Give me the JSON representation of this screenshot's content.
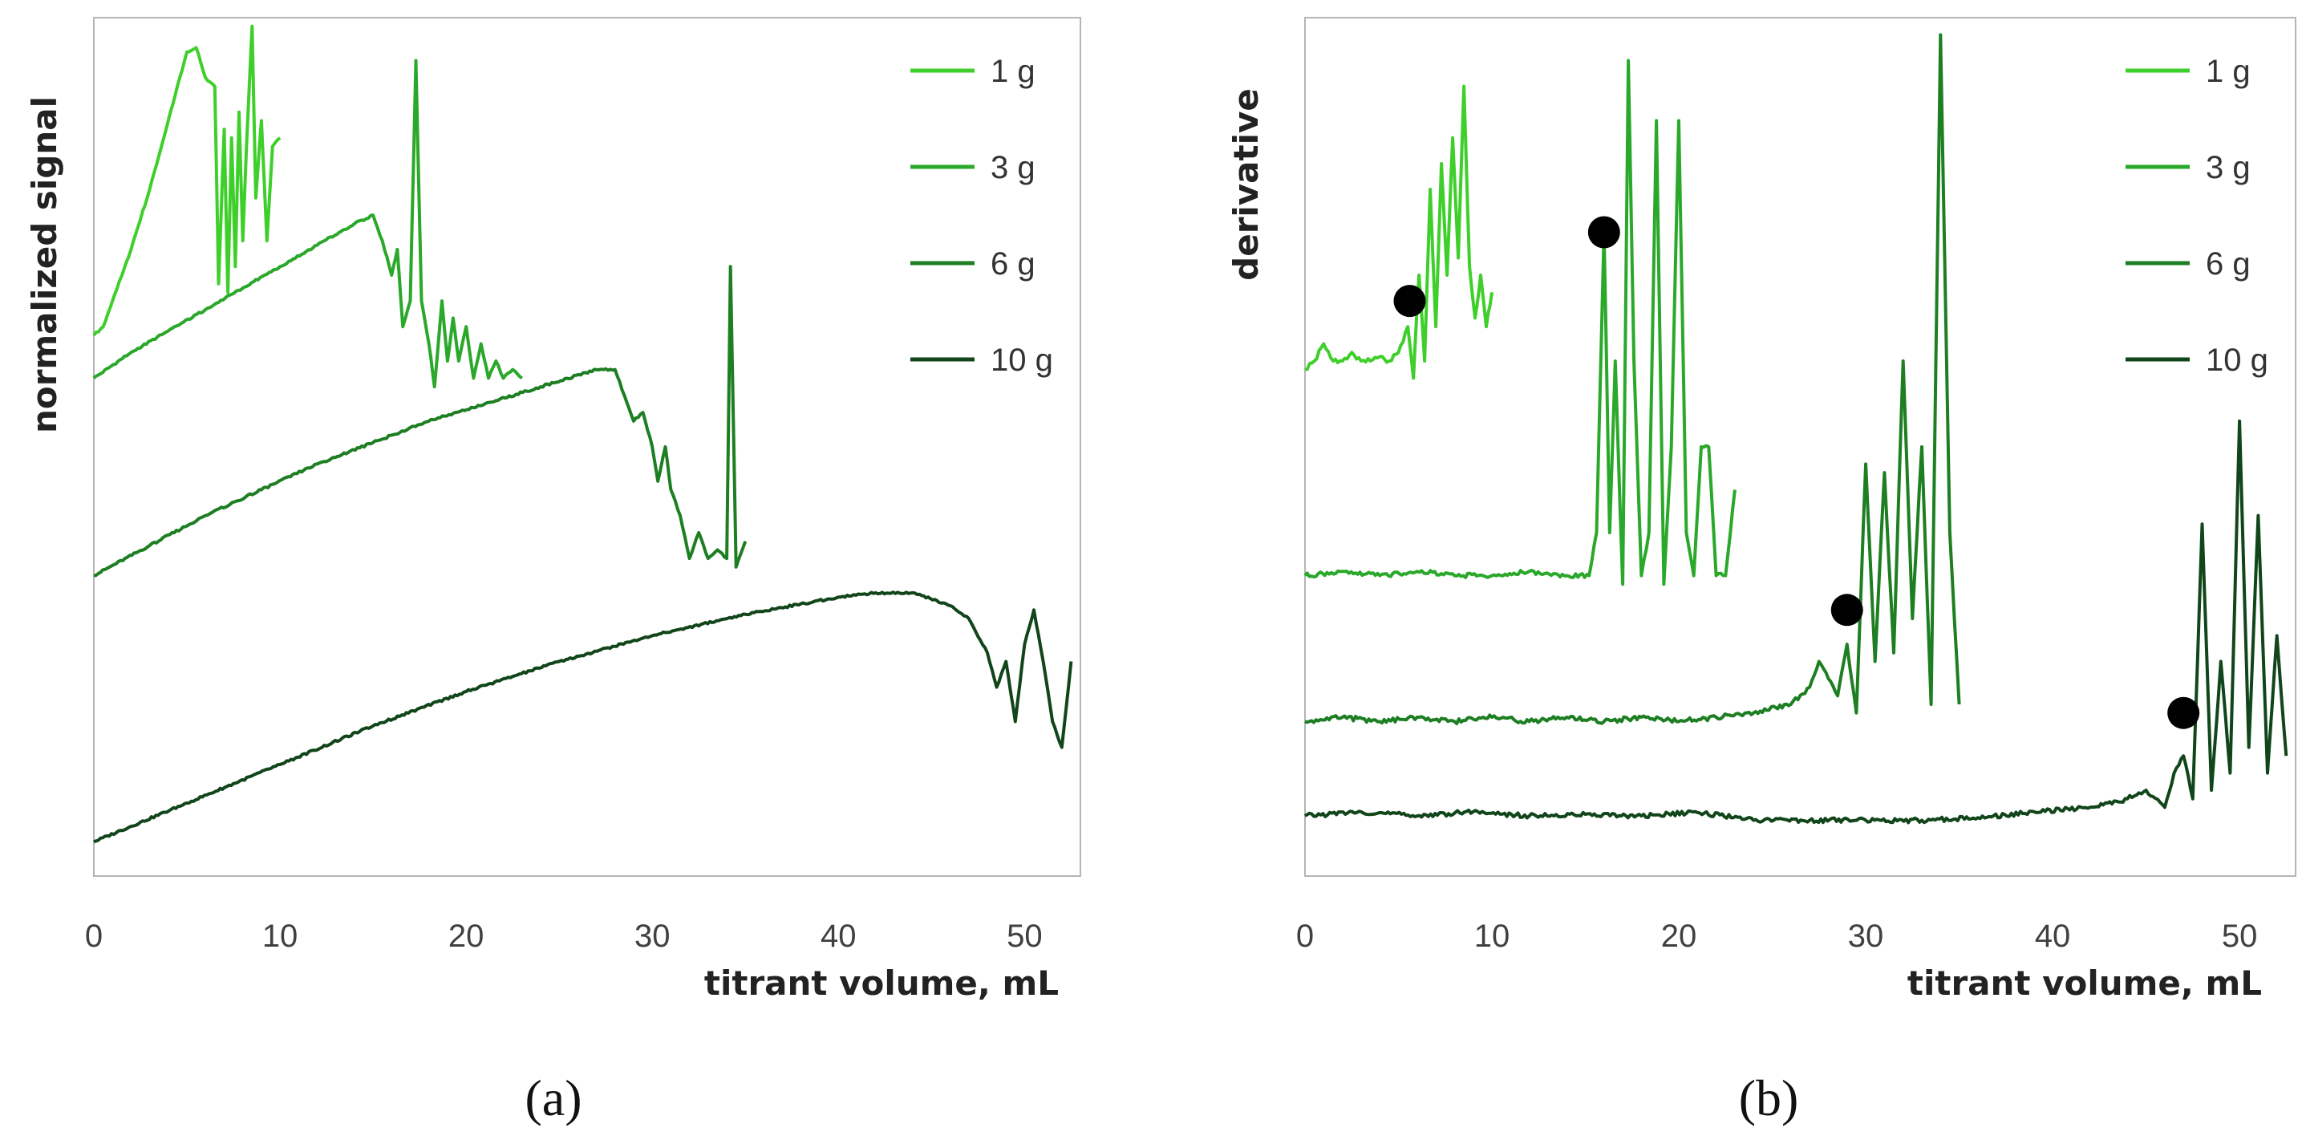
{
  "chart_data": [
    {
      "id": "a",
      "type": "line",
      "panel_label": "(a)",
      "xlabel": "titrant volume, mL",
      "ylabel": "normalized signal",
      "xlim": [
        0,
        53
      ],
      "xticks": [
        0,
        10,
        20,
        30,
        40,
        50
      ],
      "ylim": [
        0,
        100
      ],
      "yticks_shown": false,
      "legend_position": "top-right",
      "series": [
        {
          "name": "1 g",
          "color": "#3fcf2b",
          "x": [
            0,
            0.5,
            1,
            2,
            3,
            4,
            5,
            5.5,
            6,
            6.5,
            6.7,
            7,
            7.2,
            7.4,
            7.6,
            7.8,
            8,
            8.2,
            8.5,
            8.7,
            9,
            9.3,
            9.6,
            10
          ],
          "y": [
            63,
            64,
            67,
            73,
            80,
            88,
            96,
            96.5,
            93,
            92,
            69,
            87,
            68,
            86,
            71,
            89,
            74,
            85,
            99,
            79,
            88,
            74,
            85,
            86
          ]
        },
        {
          "name": "3 g",
          "color": "#2aa82a",
          "x": [
            0,
            2,
            4,
            6,
            8,
            10,
            12,
            14,
            15,
            15.5,
            16,
            16.3,
            16.6,
            17,
            17.3,
            17.6,
            18,
            18.3,
            18.7,
            19,
            19.3,
            19.6,
            20,
            20.4,
            20.8,
            21.2,
            21.6,
            22,
            22.5,
            23
          ],
          "y": [
            58,
            61,
            63.5,
            66,
            68.5,
            71,
            73.5,
            76,
            77,
            74,
            70,
            73,
            64,
            67,
            95,
            67,
            62,
            57,
            67,
            60,
            65,
            60,
            64,
            58,
            62,
            58,
            60,
            58,
            59,
            58
          ],
          "style": "peaks"
        },
        {
          "name": "6 g",
          "color": "#1d7e22",
          "x": [
            0,
            3,
            6,
            9,
            12,
            15,
            18,
            21,
            24,
            27,
            28,
            28.5,
            29,
            29.5,
            30,
            30.3,
            30.7,
            31,
            31.5,
            32,
            32.5,
            33,
            33.5,
            34,
            34.2,
            34.5,
            35
          ],
          "y": [
            35,
            38.5,
            42,
            45,
            48,
            50.5,
            53,
            55,
            57,
            59,
            59,
            56,
            53,
            54,
            50,
            46,
            50,
            45,
            42,
            37,
            40,
            37,
            38,
            37,
            71,
            36,
            39
          ],
          "style": "peaks"
        },
        {
          "name": "10 g",
          "color": "#11451a",
          "x": [
            0,
            5,
            10,
            15,
            20,
            25,
            30,
            35,
            40,
            42,
            44,
            46,
            47,
            48,
            48.5,
            49,
            49.5,
            50,
            50.5,
            51,
            51.5,
            52,
            52.5
          ],
          "y": [
            4,
            8.5,
            13,
            17.5,
            21.5,
            25,
            28,
            30.5,
            32.5,
            33,
            33,
            31.5,
            30,
            26,
            22,
            25,
            18,
            27,
            31,
            25,
            18,
            15,
            25
          ],
          "style": "peaks"
        }
      ]
    },
    {
      "id": "b",
      "type": "line",
      "panel_label": "(b)",
      "xlabel": "titrant volume, mL",
      "ylabel": "derivative",
      "xlim": [
        0,
        53
      ],
      "xticks": [
        0,
        10,
        20,
        30,
        40,
        50
      ],
      "ylim": [
        0,
        100
      ],
      "yticks_shown": false,
      "legend_position": "top-right",
      "series": [
        {
          "name": "1 g",
          "color": "#3fcf2b",
          "x": [
            0,
            0.5,
            1,
            1.5,
            2,
            2.5,
            3,
            3.5,
            4,
            4.5,
            5,
            5.5,
            5.8,
            6.1,
            6.4,
            6.7,
            7,
            7.3,
            7.6,
            7.9,
            8.2,
            8.5,
            8.8,
            9.1,
            9.4,
            9.7,
            10
          ],
          "y": [
            59,
            60,
            62,
            60,
            60,
            61,
            60,
            60,
            60.5,
            60,
            61,
            64,
            58,
            70,
            60,
            80,
            64,
            83,
            70,
            86,
            72,
            92,
            71,
            65,
            70,
            64,
            68
          ],
          "style": "peaks"
        },
        {
          "name": "3 g",
          "color": "#2aa82a",
          "x": [
            0,
            2,
            4,
            6,
            8,
            10,
            12,
            14,
            15.2,
            15.6,
            16,
            16.3,
            16.6,
            17,
            17.3,
            17.6,
            18,
            18.4,
            18.8,
            19.2,
            19.6,
            20,
            20.4,
            20.8,
            21.2,
            21.6,
            22,
            22.5,
            23
          ],
          "y": [
            35,
            35.5,
            35,
            35.5,
            35,
            35,
            35.5,
            35,
            35,
            40,
            75,
            40,
            60,
            34,
            95,
            60,
            35,
            40,
            88,
            34,
            50,
            88,
            40,
            35,
            50,
            50,
            35,
            35,
            45
          ],
          "style": "peaks"
        },
        {
          "name": "6 g",
          "color": "#1d7e22",
          "x": [
            0,
            2,
            4,
            6,
            8,
            10,
            12,
            14,
            16,
            18,
            20,
            22,
            24,
            26,
            27,
            27.5,
            28,
            28.5,
            29,
            29.5,
            30,
            30.5,
            31,
            31.5,
            32,
            32.5,
            33,
            33.5,
            34,
            34.5,
            35
          ],
          "y": [
            18,
            18.5,
            18,
            18.5,
            18,
            18.5,
            18,
            18.5,
            18,
            18.5,
            18,
            18.5,
            19,
            20,
            22,
            25,
            23,
            21,
            27,
            19,
            48,
            25,
            47,
            26,
            60,
            30,
            50,
            20,
            98,
            40,
            20
          ],
          "style": "peaks"
        },
        {
          "name": "10 g",
          "color": "#11451a",
          "x": [
            0,
            3,
            6,
            9,
            12,
            15,
            18,
            21,
            24,
            27,
            30,
            33,
            36,
            39,
            42,
            44,
            45,
            46,
            46.5,
            47,
            47.5,
            48,
            48.5,
            49,
            49.5,
            50,
            50.5,
            51,
            51.5,
            52,
            52.5
          ],
          "y": [
            7,
            7.5,
            7,
            7.5,
            7,
            7.2,
            7,
            7.4,
            6.5,
            6.5,
            6.5,
            6.5,
            6.8,
            7.5,
            8,
            9,
            10,
            8,
            12,
            14,
            9,
            41,
            10,
            25,
            12,
            53,
            15,
            42,
            12,
            28,
            14
          ],
          "style": "peaks"
        }
      ],
      "markers": [
        {
          "x": 5.6,
          "y": 67,
          "label": ""
        },
        {
          "x": 16,
          "y": 75,
          "label": ""
        },
        {
          "x": 29,
          "y": 31,
          "label": ""
        },
        {
          "x": 47,
          "y": 19,
          "label": ""
        }
      ]
    }
  ]
}
